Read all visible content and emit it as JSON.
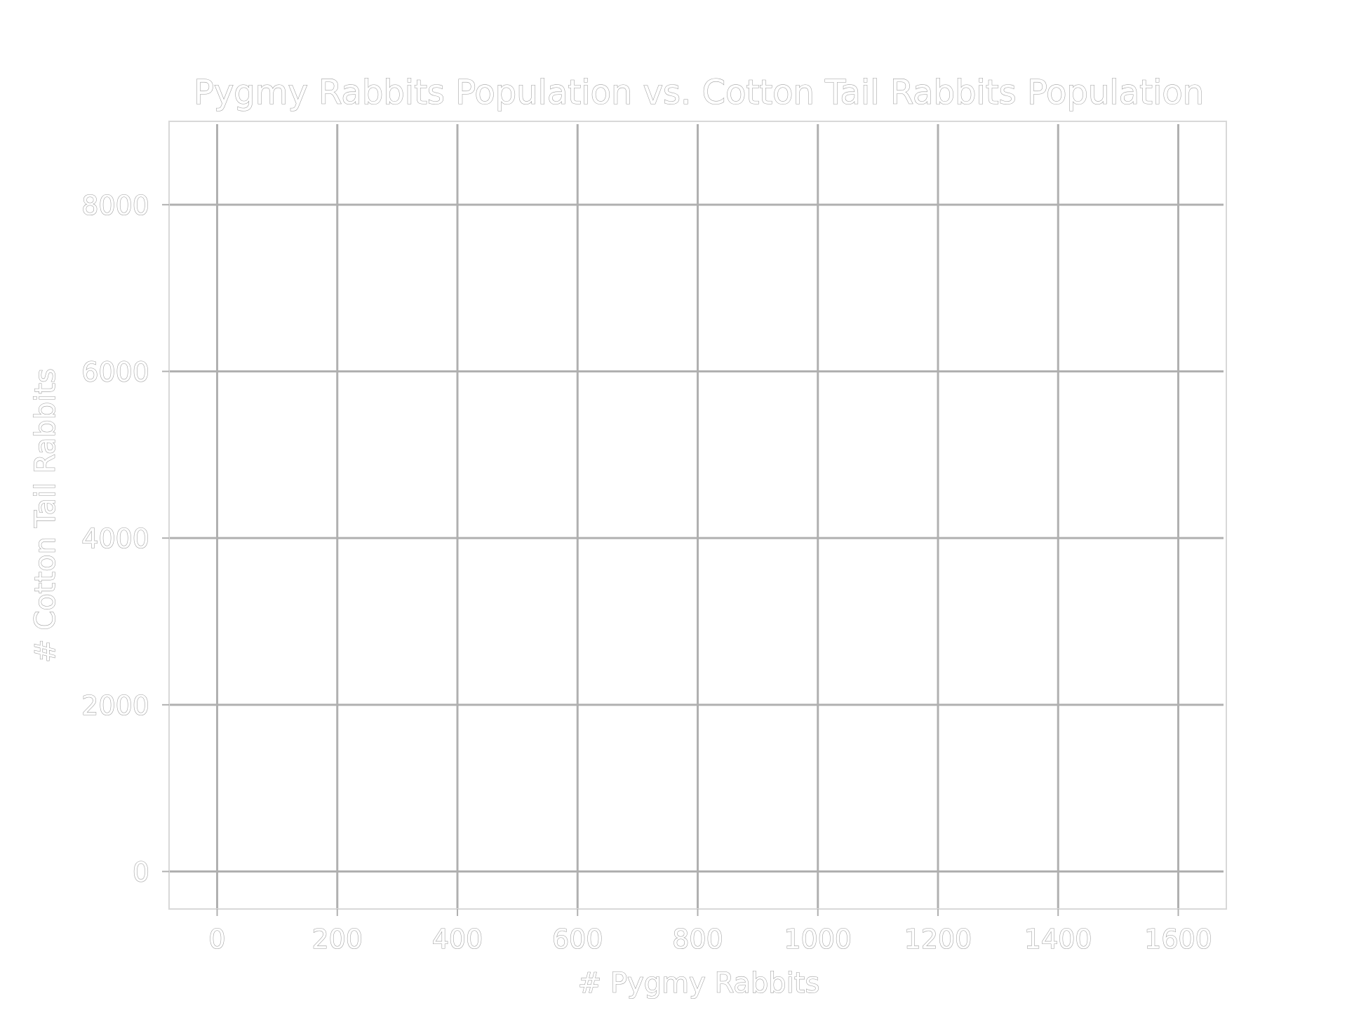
{
  "chart_data": {
    "type": "scatter",
    "title": "Pygmy Rabbits Population vs. Cotton Tail Rabbits Population",
    "xlabel": "# Pygmy Rabbits",
    "ylabel": "# Cotton Tail Rabbits",
    "xlim": [
      -80,
      1680
    ],
    "ylim": [
      -450,
      9000
    ],
    "xticks": [
      0,
      200,
      400,
      600,
      800,
      1000,
      1200,
      1400,
      1600
    ],
    "xtick_labels": [
      "0",
      "200",
      "400",
      "600",
      "800",
      "1000",
      "1200",
      "1400",
      "1600"
    ],
    "yticks": [
      0,
      2000,
      4000,
      6000,
      8000
    ],
    "ytick_labels": [
      "0",
      "2000",
      "4000",
      "6000",
      "8000"
    ],
    "grid": true,
    "series": [
      {
        "x": [],
        "y": []
      }
    ]
  }
}
